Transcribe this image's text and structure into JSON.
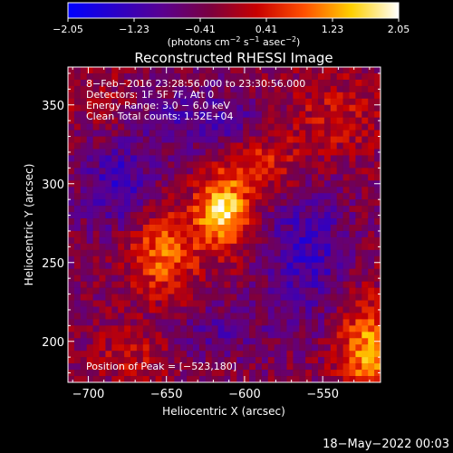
{
  "chart_data": {
    "type": "heatmap",
    "title": "Reconstructed RHESSI Image",
    "colorbar": {
      "ticks": [
        "-2.05",
        "-1.23",
        "-0.41",
        "0.41",
        "1.23",
        "2.05"
      ],
      "range": [
        -2.05,
        2.05
      ],
      "colormap": [
        "#0000ff",
        "#2a00c8",
        "#5a0090",
        "#7a0040",
        "#c80000",
        "#ff5000",
        "#ffd000",
        "#ffffff"
      ]
    },
    "xlabel": "Heliocentric X (arcsec)",
    "ylabel": "Heliocentric Y (arcsec)",
    "xlim": [
      -713,
      -513
    ],
    "ylim": [
      174,
      374
    ],
    "xticks": [
      -700,
      -650,
      -600,
      -550
    ],
    "xtick_labels": [
      "−700",
      "−650",
      "−600",
      "−550"
    ],
    "yticks": [
      200,
      250,
      300,
      350
    ],
    "ytick_labels": [
      "200",
      "250",
      "300",
      "350"
    ],
    "annotations": [
      "8−Feb−2016 23:28:56.000 to 23:30:56.000",
      "Detectors: 1F 5F 7F, Att 0",
      "Energy Range: 3.0 − 6.0 keV",
      "Clean     Total counts: 1.52E+04",
      "Position of Peak = [−523,180]"
    ],
    "sources": [
      {
        "x": -614,
        "y": 282,
        "sx": 12,
        "sy": 16,
        "amp": 2.05
      },
      {
        "x": -652,
        "y": 256,
        "sx": 16,
        "sy": 20,
        "amp": 1.3
      },
      {
        "x": -590,
        "y": 312,
        "sx": 16,
        "sy": 12,
        "amp": 0.9
      },
      {
        "x": -545,
        "y": 342,
        "sx": 28,
        "sy": 20,
        "amp": 0.6
      },
      {
        "x": -520,
        "y": 195,
        "sx": 14,
        "sy": 22,
        "amp": 1.6
      },
      {
        "x": -670,
        "y": 192,
        "sx": 18,
        "sy": 12,
        "amp": 0.6
      },
      {
        "x": -690,
        "y": 350,
        "sx": 20,
        "sy": 18,
        "amp": 0.35
      }
    ],
    "negative_lobes": [
      {
        "x": -680,
        "y": 300,
        "sx": 16,
        "sy": 22,
        "amp": -0.9
      },
      {
        "x": -625,
        "y": 340,
        "sx": 30,
        "sy": 14,
        "amp": -0.7
      },
      {
        "x": -560,
        "y": 255,
        "sx": 18,
        "sy": 28,
        "amp": -0.9
      },
      {
        "x": -620,
        "y": 205,
        "sx": 24,
        "sy": 12,
        "amp": -0.5
      }
    ]
  },
  "footer": {
    "date": "18−May−2022 00:03"
  }
}
